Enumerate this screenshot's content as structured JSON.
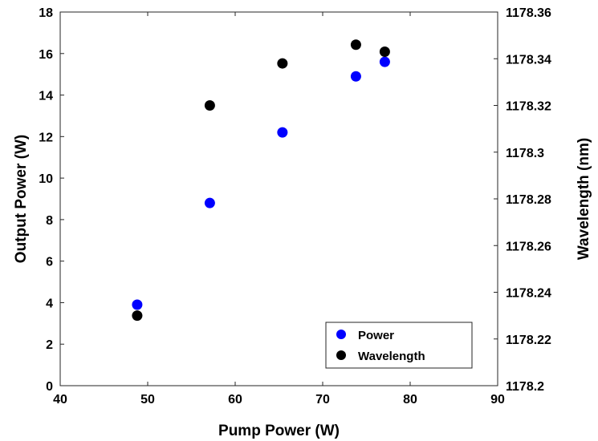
{
  "chart_data": {
    "type": "scatter",
    "title": "",
    "xlabel": "Pump Power (W)",
    "ylabel": "Output Power (W)",
    "y2label": "Wavelength (nm)",
    "xlim": [
      40,
      90
    ],
    "ylim": [
      0,
      18
    ],
    "y2lim": [
      1178.2,
      1178.36
    ],
    "grid": false,
    "legend_position": "bottom-right",
    "xticks": [
      "40",
      "50",
      "60",
      "70",
      "80",
      "90"
    ],
    "yticks": [
      "0",
      "2",
      "4",
      "6",
      "8",
      "10",
      "12",
      "14",
      "16",
      "18"
    ],
    "y2ticks": [
      "1178.2",
      "1178.22",
      "1178.24",
      "1178.26",
      "1178.28",
      "1178.3",
      "1178.32",
      "1178.34",
      "1178.36"
    ],
    "series": [
      {
        "name": "Power",
        "axis": "left",
        "color": "#0000ff",
        "x": [
          48.8,
          57.1,
          65.4,
          73.8,
          77.1
        ],
        "y": [
          3.9,
          8.8,
          12.2,
          14.9,
          15.6
        ]
      },
      {
        "name": "Wavelength",
        "axis": "right",
        "color": "#000000",
        "x": [
          48.8,
          57.1,
          65.4,
          73.8,
          77.1
        ],
        "y": [
          1178.23,
          1178.32,
          1178.338,
          1178.346,
          1178.343
        ]
      }
    ]
  }
}
